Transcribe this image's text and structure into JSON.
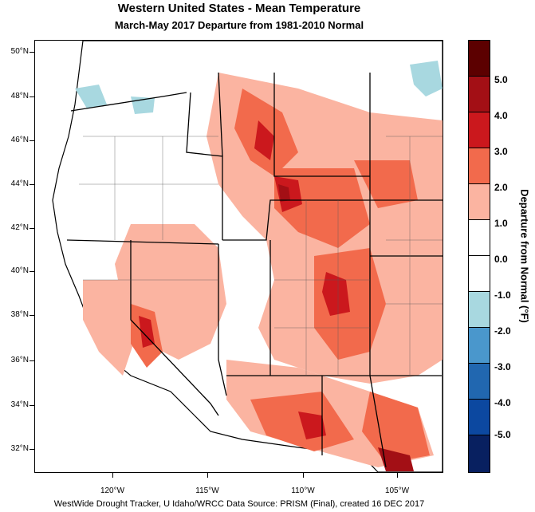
{
  "title": "Western United States - Mean Temperature",
  "subtitle": "March-May 2017  Departure from 1981-2010 Normal",
  "footer": "WestWide Drought Tracker, U Idaho/WRCC Data Source: PRISM (Final), created 16 DEC 2017",
  "colorbar": {
    "title": "Departure from Normal (°F)",
    "labels": [
      "5.0",
      "4.0",
      "3.0",
      "2.0",
      "1.0",
      "0.0",
      "-1.0",
      "-2.0",
      "-3.0",
      "-4.0",
      "-5.0"
    ],
    "colors": [
      "#5c0000",
      "#a30f15",
      "#cb181d",
      "#f26a4c",
      "#fbb4a1",
      "#ffffff",
      "#ffffff",
      "#a8d8e0",
      "#4a97cc",
      "#2167b0",
      "#0c48a0",
      "#082060"
    ]
  },
  "axes": {
    "lat_labels": [
      "50°N",
      "48°N",
      "46°N",
      "44°N",
      "42°N",
      "40°N",
      "38°N",
      "36°N",
      "34°N",
      "32°N"
    ],
    "lon_labels": [
      "120°W",
      "115°W",
      "110°W",
      "105°W"
    ]
  }
}
